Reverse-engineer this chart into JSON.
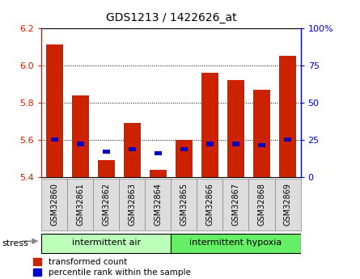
{
  "title": "GDS1213 / 1422626_at",
  "samples": [
    "GSM32860",
    "GSM32861",
    "GSM32862",
    "GSM32863",
    "GSM32864",
    "GSM32865",
    "GSM32866",
    "GSM32867",
    "GSM32868",
    "GSM32869"
  ],
  "transformed_count": [
    6.11,
    5.84,
    5.49,
    5.69,
    5.44,
    5.6,
    5.96,
    5.92,
    5.87,
    6.05
  ],
  "percentile_values": [
    5.6,
    5.578,
    5.536,
    5.55,
    5.53,
    5.55,
    5.578,
    5.578,
    5.572,
    5.6
  ],
  "ylim": [
    5.4,
    6.2
  ],
  "yticks": [
    5.4,
    5.6,
    5.8,
    6.0,
    6.2
  ],
  "right_yticks": [
    0,
    25,
    50,
    75,
    100
  ],
  "bar_color": "#cc2200",
  "percentile_color": "#0000cc",
  "group1_label": "intermittent air",
  "group2_label": "intermittent hypoxia",
  "group1_color": "#bbffbb",
  "group2_color": "#66ee66",
  "stress_label": "stress",
  "legend_red": "transformed count",
  "legend_blue": "percentile rank within the sample",
  "bar_bottom": 5.4,
  "bar_width": 0.65,
  "percentile_bar_width": 0.28,
  "percentile_bar_height": 0.022,
  "xticklabel_bg": "#dddddd",
  "grid_color": "#000000",
  "spine_left_color": "#cc2200",
  "spine_right_color": "#0000cc"
}
